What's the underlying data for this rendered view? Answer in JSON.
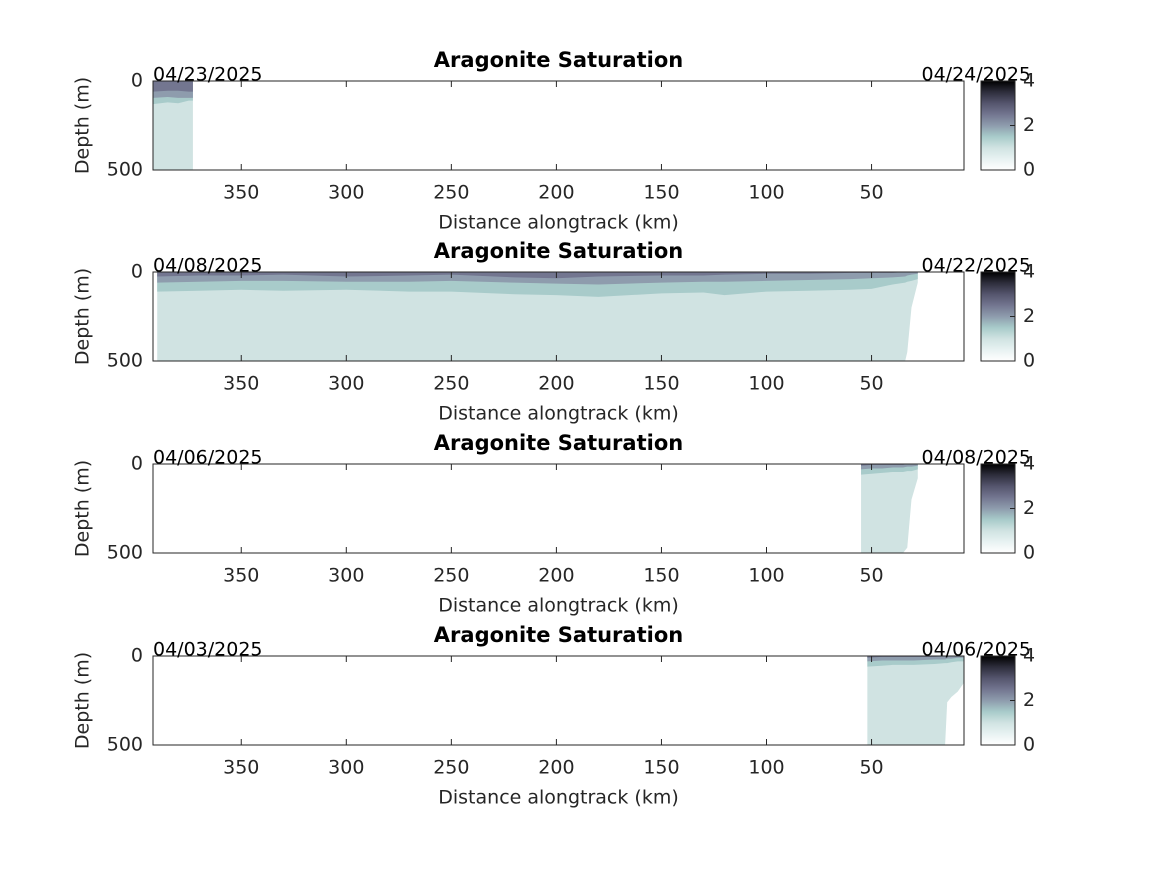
{
  "chart_data": [
    {
      "type": "contour",
      "title": "Aragonite Saturation",
      "xlabel": "Distance alongtrack (km)",
      "ylabel": "Depth (m)",
      "date_start": "04/23/2025",
      "date_end": "04/24/2025",
      "xlim": [
        392,
        6
      ],
      "xticks": [
        350,
        300,
        250,
        200,
        150,
        100,
        50
      ],
      "ylim": [
        0,
        500
      ],
      "yticks": [
        0,
        500
      ],
      "y_reversed": true,
      "x": [
        392,
        385,
        380,
        375,
        373
      ],
      "layers": [
        {
          "level": 1,
          "values": [
            500,
            500,
            500,
            500,
            500
          ]
        },
        {
          "level": 1.5,
          "values": [
            130,
            120,
            125,
            110,
            110
          ]
        },
        {
          "level": 2,
          "values": [
            95,
            90,
            95,
            95,
            95
          ]
        },
        {
          "level": 2.5,
          "values": [
            60,
            55,
            55,
            60,
            60
          ]
        }
      ],
      "colorbar": {
        "clim": [
          0,
          4
        ],
        "ticks": [
          0,
          2,
          4
        ],
        "colormap": [
          "#ffffff",
          "#e8f2f2",
          "#d0e3e2",
          "#a8cbca",
          "#8e9cad",
          "#737690",
          "#55556d",
          "#2e2e3c",
          "#000000"
        ]
      }
    },
    {
      "type": "contour",
      "title": "Aragonite Saturation",
      "xlabel": "Distance alongtrack (km)",
      "ylabel": "Depth (m)",
      "date_start": "04/08/2025",
      "date_end": "04/22/2025",
      "xlim": [
        392,
        6
      ],
      "xticks": [
        350,
        300,
        250,
        200,
        150,
        100,
        50
      ],
      "ylim": [
        0,
        500
      ],
      "yticks": [
        0,
        500
      ],
      "y_reversed": true,
      "x": [
        390,
        370,
        350,
        330,
        300,
        270,
        250,
        220,
        200,
        180,
        150,
        130,
        120,
        100,
        80,
        60,
        50,
        40,
        34,
        33,
        31,
        28
      ],
      "layers": [
        {
          "level": 1,
          "values": [
            500,
            500,
            500,
            500,
            500,
            500,
            500,
            500,
            500,
            500,
            500,
            500,
            500,
            500,
            500,
            500,
            500,
            500,
            500,
            450,
            200,
            60
          ]
        },
        {
          "level": 1.5,
          "values": [
            110,
            105,
            100,
            105,
            100,
            110,
            110,
            125,
            130,
            140,
            120,
            115,
            130,
            110,
            105,
            100,
            95,
            70,
            60,
            55,
            50,
            40
          ]
        },
        {
          "level": 2,
          "values": [
            60,
            55,
            50,
            50,
            55,
            55,
            50,
            60,
            65,
            70,
            60,
            55,
            55,
            50,
            45,
            40,
            35,
            30,
            25,
            20,
            15,
            10
          ]
        },
        {
          "level": 2.5,
          "values": [
            25,
            20,
            20,
            15,
            25,
            20,
            15,
            30,
            35,
            25,
            20,
            20,
            15,
            10,
            10,
            5,
            5,
            5,
            0,
            0,
            0,
            0
          ]
        }
      ],
      "colorbar": {
        "clim": [
          0,
          4
        ],
        "ticks": [
          0,
          2,
          4
        ],
        "colormap": [
          "#ffffff",
          "#e8f2f2",
          "#d0e3e2",
          "#a8cbca",
          "#8e9cad",
          "#737690",
          "#55556d",
          "#2e2e3c",
          "#000000"
        ]
      }
    },
    {
      "type": "contour",
      "title": "Aragonite Saturation",
      "xlabel": "Distance alongtrack (km)",
      "ylabel": "Depth (m)",
      "date_start": "04/06/2025",
      "date_end": "04/08/2025",
      "xlim": [
        392,
        6
      ],
      "xticks": [
        350,
        300,
        250,
        200,
        150,
        100,
        50
      ],
      "ylim": [
        0,
        500
      ],
      "yticks": [
        0,
        500
      ],
      "y_reversed": true,
      "x": [
        55,
        50,
        45,
        40,
        35,
        33,
        31,
        28
      ],
      "layers": [
        {
          "level": 1,
          "values": [
            500,
            500,
            500,
            500,
            500,
            470,
            200,
            80
          ]
        },
        {
          "level": 1.5,
          "values": [
            60,
            55,
            50,
            45,
            45,
            40,
            40,
            30
          ]
        },
        {
          "level": 2,
          "values": [
            30,
            25,
            25,
            20,
            20,
            15,
            15,
            10
          ]
        },
        {
          "level": 2.5,
          "values": [
            10,
            5,
            5,
            5,
            5,
            0,
            0,
            0
          ]
        }
      ],
      "colorbar": {
        "clim": [
          0,
          4
        ],
        "ticks": [
          0,
          2,
          4
        ],
        "colormap": [
          "#ffffff",
          "#e8f2f2",
          "#d0e3e2",
          "#a8cbca",
          "#8e9cad",
          "#737690",
          "#55556d",
          "#2e2e3c",
          "#000000"
        ]
      }
    },
    {
      "type": "contour",
      "title": "Aragonite Saturation",
      "xlabel": "Distance alongtrack (km)",
      "ylabel": "Depth (m)",
      "date_start": "04/03/2025",
      "date_end": "04/06/2025",
      "xlim": [
        392,
        6
      ],
      "xticks": [
        350,
        300,
        250,
        200,
        150,
        100,
        50
      ],
      "ylim": [
        0,
        500
      ],
      "yticks": [
        0,
        500
      ],
      "y_reversed": true,
      "x": [
        52,
        45,
        40,
        30,
        20,
        15,
        14,
        12,
        9,
        6
      ],
      "layers": [
        {
          "level": 1,
          "values": [
            500,
            500,
            500,
            500,
            500,
            500,
            260,
            230,
            200,
            150
          ]
        },
        {
          "level": 1.5,
          "values": [
            60,
            55,
            50,
            50,
            45,
            40,
            40,
            35,
            30,
            30
          ]
        },
        {
          "level": 2,
          "values": [
            30,
            25,
            25,
            25,
            20,
            20,
            15,
            15,
            10,
            10
          ]
        },
        {
          "level": 2.5,
          "values": [
            10,
            5,
            5,
            5,
            5,
            0,
            0,
            0,
            0,
            0
          ]
        }
      ],
      "colorbar": {
        "clim": [
          0,
          4
        ],
        "ticks": [
          0,
          2,
          4
        ],
        "colormap": [
          "#ffffff",
          "#e8f2f2",
          "#d0e3e2",
          "#a8cbca",
          "#8e9cad",
          "#737690",
          "#55556d",
          "#2e2e3c",
          "#000000"
        ]
      }
    }
  ]
}
